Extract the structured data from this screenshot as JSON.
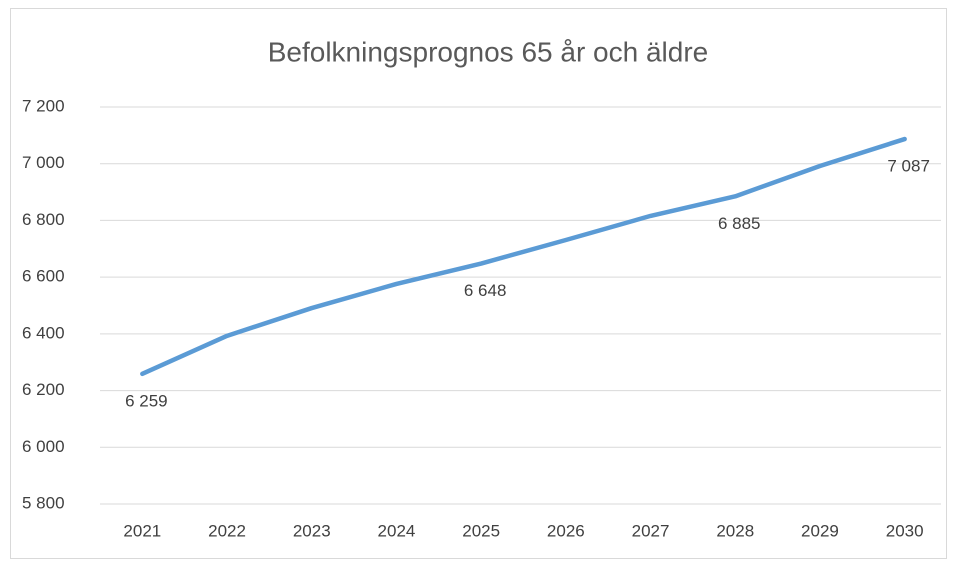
{
  "chart_data": {
    "type": "line",
    "title": "Befolkningsprognos 65 år och äldre",
    "categories": [
      "2021",
      "2022",
      "2023",
      "2024",
      "2025",
      "2026",
      "2027",
      "2028",
      "2029",
      "2030"
    ],
    "series": [
      {
        "name": "Befolkningsprognos 65 år och äldre",
        "color": "#5b9bd5",
        "values": [
          6259,
          6393,
          6491,
          6576,
          6648,
          6731,
          6816,
          6885,
          6992,
          7087
        ],
        "value_labels": [
          "6 259",
          null,
          null,
          null,
          "6 648",
          null,
          null,
          "6 885",
          null,
          "7 087"
        ]
      }
    ],
    "ylim": [
      5800,
      7200
    ],
    "yticks": [
      {
        "value": 5800,
        "label": "5 800"
      },
      {
        "value": 6000,
        "label": "6 000"
      },
      {
        "value": 6200,
        "label": "6 200"
      },
      {
        "value": 6400,
        "label": "6 400"
      },
      {
        "value": 6600,
        "label": "6 600"
      },
      {
        "value": 6800,
        "label": "6 800"
      },
      {
        "value": 7000,
        "label": "7 000"
      },
      {
        "value": 7200,
        "label": "7 200"
      }
    ],
    "grid": true
  }
}
